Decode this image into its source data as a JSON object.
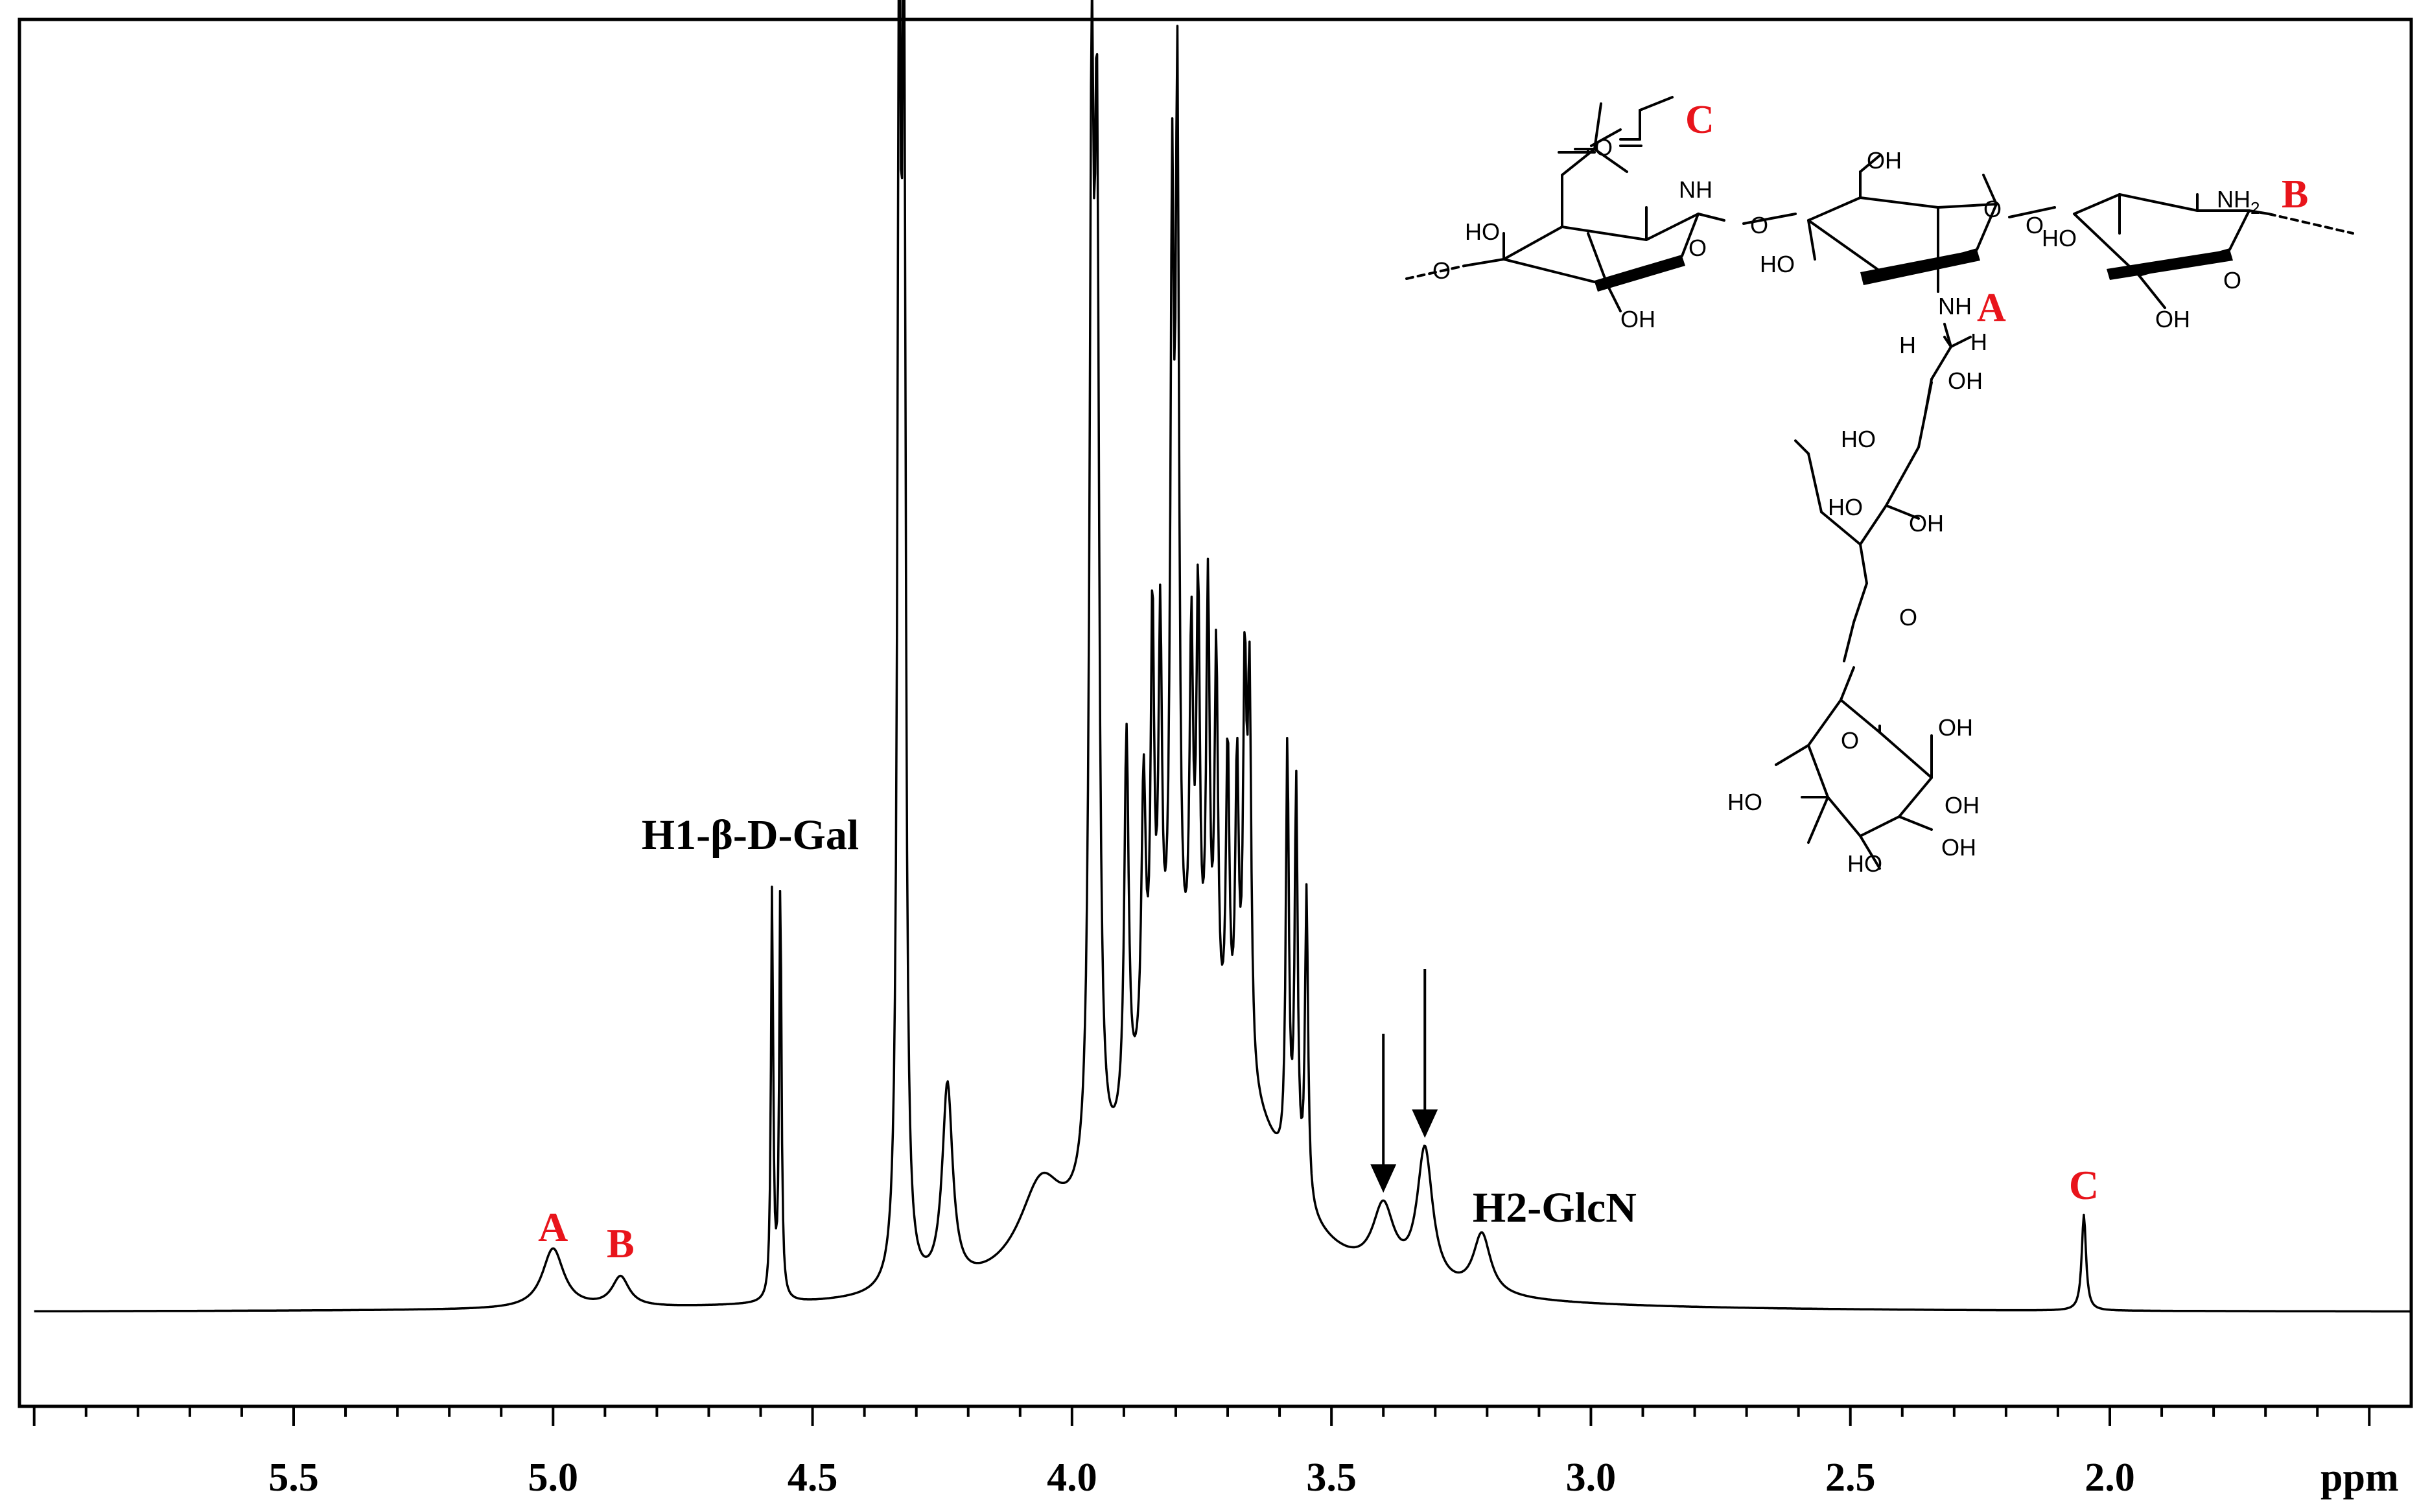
{
  "chart_data": {
    "type": "line",
    "title": "",
    "xlabel": "ppm",
    "ylabel": "",
    "x_reversed": true,
    "xlim": [
      6.0,
      1.3
    ],
    "ylim": [
      -0.09,
      1.0
    ],
    "grid": false,
    "ticks": [
      {
        "value": 5.5,
        "label": "5.5"
      },
      {
        "value": 5.0,
        "label": "5.0"
      },
      {
        "value": 4.5,
        "label": "4.5"
      },
      {
        "value": 4.0,
        "label": "4.0"
      },
      {
        "value": 3.5,
        "label": "3.5"
      },
      {
        "value": 3.0,
        "label": "3.0"
      },
      {
        "value": 2.5,
        "label": "2.5"
      },
      {
        "value": 2.0,
        "label": "2.0"
      }
    ],
    "peaks": [
      {
        "x": 5.0,
        "h": 0.048,
        "w": 0.025
      },
      {
        "x": 4.87,
        "h": 0.024,
        "w": 0.02
      },
      {
        "x": 4.578,
        "h": 0.33,
        "w": 0.0025
      },
      {
        "x": 4.562,
        "h": 0.34,
        "w": 0.0025
      },
      {
        "x": 4.333,
        "h": 0.985,
        "w": 0.004
      },
      {
        "x": 4.324,
        "h": 0.985,
        "w": 0.004
      },
      {
        "x": 4.24,
        "h": 0.16,
        "w": 0.012
      },
      {
        "x": 4.06,
        "h": 0.065,
        "w": 0.05
      },
      {
        "x": 3.962,
        "h": 0.82,
        "w": 0.005
      },
      {
        "x": 3.952,
        "h": 0.76,
        "w": 0.005
      },
      {
        "x": 3.895,
        "h": 0.31,
        "w": 0.005
      },
      {
        "x": 3.862,
        "h": 0.23,
        "w": 0.005
      },
      {
        "x": 3.845,
        "h": 0.34,
        "w": 0.004
      },
      {
        "x": 3.83,
        "h": 0.31,
        "w": 0.004
      },
      {
        "x": 3.807,
        "h": 0.61,
        "w": 0.004
      },
      {
        "x": 3.797,
        "h": 0.7,
        "w": 0.004
      },
      {
        "x": 3.77,
        "h": 0.29,
        "w": 0.004
      },
      {
        "x": 3.757,
        "h": 0.33,
        "w": 0.004
      },
      {
        "x": 3.738,
        "h": 0.35,
        "w": 0.004
      },
      {
        "x": 3.722,
        "h": 0.31,
        "w": 0.004
      },
      {
        "x": 3.7,
        "h": 0.25,
        "w": 0.004
      },
      {
        "x": 3.682,
        "h": 0.24,
        "w": 0.004
      },
      {
        "x": 3.667,
        "h": 0.31,
        "w": 0.004
      },
      {
        "x": 3.658,
        "h": 0.31,
        "w": 0.004
      },
      {
        "x": 3.585,
        "h": 0.34,
        "w": 0.0035
      },
      {
        "x": 3.568,
        "h": 0.32,
        "w": 0.0035
      },
      {
        "x": 3.548,
        "h": 0.25,
        "w": 0.0035
      },
      {
        "x": 3.4,
        "h": 0.055,
        "w": 0.025
      },
      {
        "x": 3.32,
        "h": 0.108,
        "w": 0.018
      },
      {
        "x": 3.21,
        "h": 0.048,
        "w": 0.02
      },
      {
        "x": 3.8,
        "h": 0.2,
        "w": 0.12
      },
      {
        "x": 3.65,
        "h": 0.08,
        "w": 0.1
      },
      {
        "x": 2.05,
        "h": 0.077,
        "w": 0.005
      }
    ],
    "annotations": [
      {
        "text": "A",
        "x": 5.0,
        "color": "#e8141b"
      },
      {
        "text": "B",
        "x": 4.87,
        "color": "#e8141b"
      },
      {
        "text": "H1-β-D-Gal",
        "x": 4.62,
        "color": "#000000"
      },
      {
        "text": "H2-GlcN",
        "x": 3.07,
        "color": "#000000"
      },
      {
        "text": "C",
        "x": 2.05,
        "color": "#e8141b"
      }
    ],
    "arrows": [
      {
        "x": 3.4
      },
      {
        "x": 3.32
      }
    ]
  },
  "structure": {
    "site_labels": [
      "C",
      "B",
      "A"
    ],
    "atom_labels": {
      "o_carbonyl": "O",
      "nh": "NH",
      "nh2": "NH",
      "nh2_sub": "2",
      "ho": "HO",
      "oh": "OH",
      "o_ring": "O",
      "h": "H"
    }
  }
}
